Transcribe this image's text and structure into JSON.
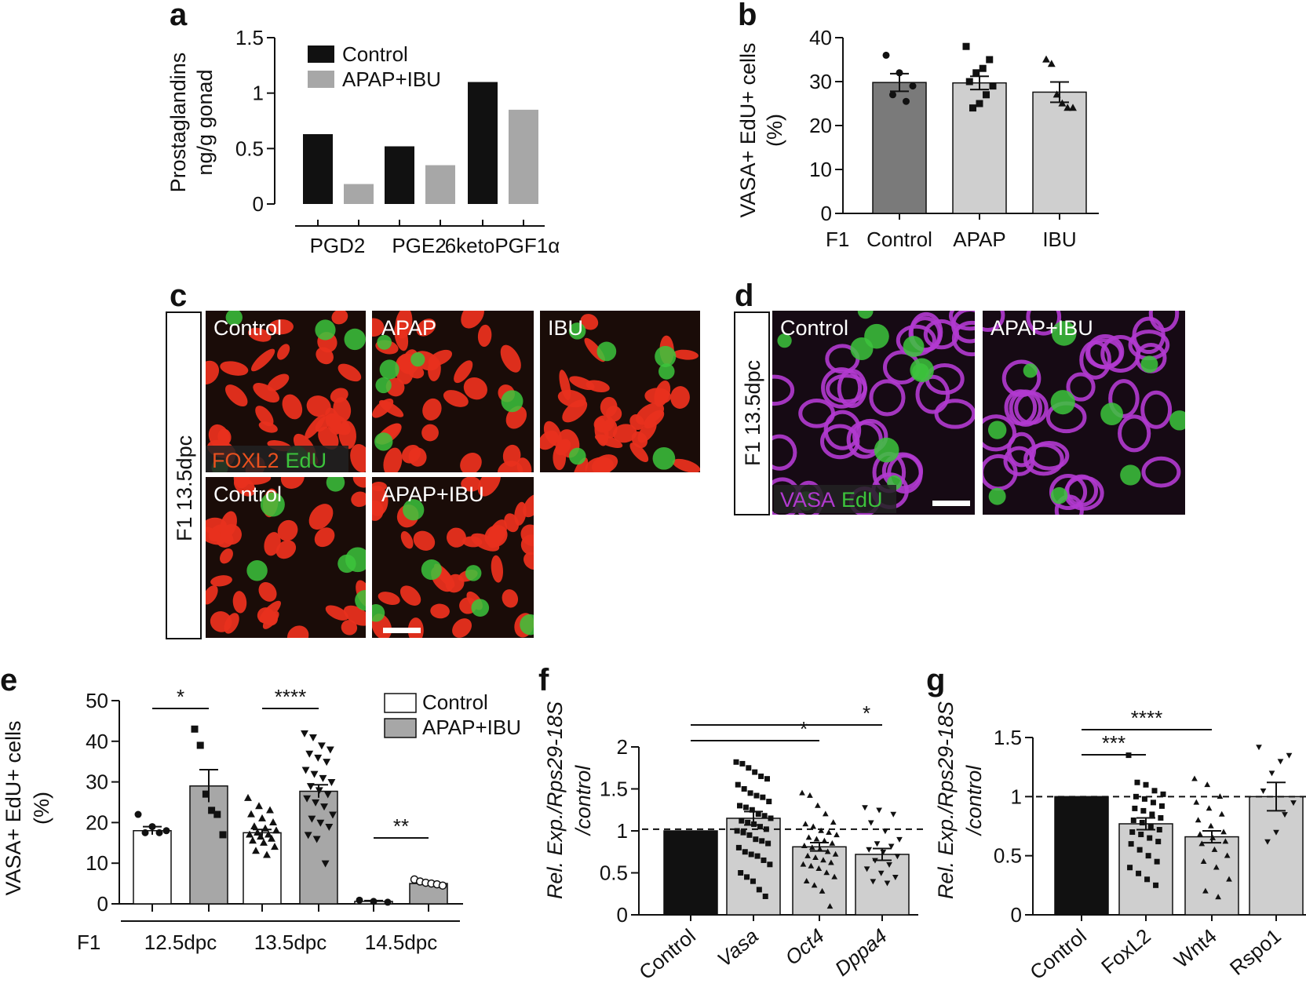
{
  "panels": {
    "a": {
      "letter": "a"
    },
    "b": {
      "letter": "b"
    },
    "c": {
      "letter": "c",
      "side_label": "F1 13.5dpc",
      "tiles": [
        "Control",
        "APAP",
        "IBU",
        "Control",
        "APAP+IBU"
      ],
      "stain_a": "FOXL2",
      "stain_b": "EdU"
    },
    "d": {
      "letter": "d",
      "side_label": "F1 13.5dpc",
      "tiles": [
        "Control",
        "APAP+IBU"
      ],
      "stain_a": "VASA",
      "stain_b": "EdU"
    },
    "e": {
      "letter": "e"
    },
    "f": {
      "letter": "f"
    },
    "g": {
      "letter": "g"
    }
  },
  "colors": {
    "black_bar": "#111111",
    "gray_bar": "#a7a7a7",
    "dark_gray_bar": "#7a7a7a",
    "light_gray_bar": "#cfcfcf",
    "foxl2": "#e8301e",
    "edu": "#3cc43c",
    "vasa": "#b23ad0"
  },
  "chart_data": [
    {
      "id": "a",
      "type": "bar",
      "ylabel": [
        "Prostaglandins",
        "ng/g gonad"
      ],
      "ylim": [
        0,
        1.5
      ],
      "yticks": [
        "0",
        "0.5",
        "1",
        "1.5"
      ],
      "categories": [
        "PGD2",
        "PGE2",
        "6ketoPGF1α"
      ],
      "series": [
        {
          "name": "Control",
          "values": [
            0.63,
            0.52,
            1.1
          ]
        },
        {
          "name": "APAP+IBU",
          "values": [
            0.18,
            0.35,
            0.85
          ]
        }
      ],
      "legend": "top-left"
    },
    {
      "id": "b",
      "type": "bar",
      "ylabel": [
        "VASA+ EdU+ cells",
        "(%)"
      ],
      "ylim": [
        0,
        40
      ],
      "yticks": [
        "0",
        "10",
        "20",
        "30",
        "40"
      ],
      "group_label": "F1",
      "categories": [
        "Control",
        "APAP",
        "IBU"
      ],
      "values": [
        29.8,
        29.7,
        27.6
      ],
      "sem": [
        2.0,
        1.5,
        2.3
      ],
      "points": [
        [
          36,
          32,
          29,
          27,
          25.5
        ],
        [
          38,
          35,
          33,
          32,
          30,
          29,
          27,
          25,
          24
        ],
        [
          35,
          34,
          27,
          25,
          24,
          24
        ]
      ]
    },
    {
      "id": "e",
      "type": "bar",
      "ylabel": [
        "VASA+ EdU+ cells",
        "(%)"
      ],
      "ylim": [
        0,
        50
      ],
      "yticks": [
        "0",
        "10",
        "20",
        "30",
        "40",
        "50"
      ],
      "group_label": "F1",
      "categories": [
        "12.5dpc",
        "13.5dpc",
        "14.5dpc"
      ],
      "series": [
        {
          "name": "Control",
          "values": [
            18,
            17.5,
            0.6
          ],
          "sem": [
            1.0,
            0.8,
            0.2
          ],
          "points": [
            [
              22,
              19,
              18,
              17.5,
              17.5
            ],
            [
              26,
              24,
              23,
              22,
              21,
              20,
              19,
              18.5,
              18,
              17.5,
              17,
              17,
              16.5,
              16,
              15.5,
              15,
              14,
              13,
              12
            ],
            [
              0.9,
              0.6,
              0.4
            ]
          ]
        },
        {
          "name": "APAP+IBU",
          "values": [
            29,
            27.7,
            5
          ],
          "sem": [
            4.0,
            1.6,
            0.4
          ],
          "points": [
            [
              43,
              39,
              27,
              23,
              22,
              17
            ],
            [
              42,
              41,
              39,
              38,
              37,
              36,
              35,
              33,
              32,
              31,
              30,
              29,
              28,
              27,
              26,
              25,
              24,
              22,
              21,
              20,
              19,
              17,
              16,
              10
            ],
            [
              6,
              5.5,
              5.2,
              5,
              4.8,
              4.5
            ]
          ]
        }
      ],
      "significance": [
        "*",
        "****",
        "**"
      ],
      "legend": "top-right"
    },
    {
      "id": "f",
      "type": "bar",
      "ylabel": [
        "Rel. Exp./Rps29-18S",
        "/control"
      ],
      "ylim": [
        0,
        2
      ],
      "yticks": [
        "0",
        "0.5",
        "1",
        "1.5",
        "2"
      ],
      "categories": [
        "Control",
        "Vasa",
        "Oct4",
        "Dppa4"
      ],
      "values": [
        1.0,
        1.15,
        0.81,
        0.72
      ],
      "sem": [
        0.0,
        0.08,
        0.05,
        0.07
      ],
      "reference_line": 1.02,
      "points": [
        [],
        [
          1.82,
          1.8,
          1.75,
          1.7,
          1.65,
          1.62,
          1.55,
          1.5,
          1.45,
          1.42,
          1.4,
          1.35,
          1.3,
          1.28,
          1.25,
          1.2,
          1.18,
          1.15,
          1.12,
          1.1,
          1.08,
          1.05,
          1.02,
          1.0,
          0.98,
          0.95,
          0.9,
          0.88,
          0.85,
          0.8,
          0.75,
          0.72,
          0.7,
          0.65,
          0.6,
          0.5,
          0.45,
          0.4,
          0.3,
          0.22
        ],
        [
          1.45,
          1.42,
          1.3,
          1.2,
          1.1,
          1.08,
          1.05,
          1.0,
          0.98,
          0.95,
          0.92,
          0.9,
          0.88,
          0.85,
          0.82,
          0.8,
          0.78,
          0.75,
          0.72,
          0.7,
          0.68,
          0.65,
          0.62,
          0.6,
          0.58,
          0.55,
          0.5,
          0.45,
          0.4,
          0.35,
          0.28,
          0.1
        ],
        [
          1.28,
          1.25,
          1.2,
          1.1,
          1.0,
          0.9,
          0.85,
          0.82,
          0.78,
          0.75,
          0.7,
          0.65,
          0.6,
          0.55,
          0.5,
          0.45,
          0.4,
          0.38
        ]
      ],
      "markers": [
        "circle",
        "square",
        "triangle",
        "triangle-down"
      ],
      "comparisons": [
        {
          "from": "Control",
          "to": "Oct4",
          "label": "*"
        },
        {
          "from": "Control",
          "to": "Dppa4",
          "label": "*"
        }
      ]
    },
    {
      "id": "g",
      "type": "bar",
      "ylabel": [
        "Rel. Exp./Rps29-18S",
        "/control"
      ],
      "ylim": [
        0,
        1.5
      ],
      "yticks": [
        "0",
        "0.5",
        "1",
        "1.5"
      ],
      "categories": [
        "Control",
        "FoxL2",
        "Wnt4",
        "Rspo1"
      ],
      "values": [
        1.0,
        0.77,
        0.66,
        1.0
      ],
      "sem": [
        0.0,
        0.05,
        0.05,
        0.12
      ],
      "reference_line": 1.0,
      "points": [
        [],
        [
          1.35,
          1.12,
          1.1,
          1.05,
          1.02,
          1.0,
          0.98,
          0.95,
          0.92,
          0.9,
          0.88,
          0.85,
          0.82,
          0.8,
          0.78,
          0.75,
          0.72,
          0.7,
          0.68,
          0.65,
          0.62,
          0.6,
          0.55,
          0.5,
          0.45,
          0.4,
          0.35,
          0.3,
          0.25
        ],
        [
          1.15,
          1.1,
          1.0,
          0.95,
          0.9,
          0.85,
          0.8,
          0.75,
          0.7,
          0.68,
          0.65,
          0.62,
          0.6,
          0.55,
          0.5,
          0.45,
          0.4,
          0.3,
          0.2,
          0.15
        ],
        [
          1.42,
          1.35,
          1.3,
          1.2,
          1.05,
          0.95,
          0.85,
          0.7,
          0.62
        ]
      ],
      "markers": [
        "circle",
        "square",
        "triangle",
        "triangle-down"
      ],
      "comparisons": [
        {
          "from": "Control",
          "to": "FoxL2",
          "label": "***"
        },
        {
          "from": "Control",
          "to": "Wnt4",
          "label": "****"
        }
      ]
    }
  ]
}
